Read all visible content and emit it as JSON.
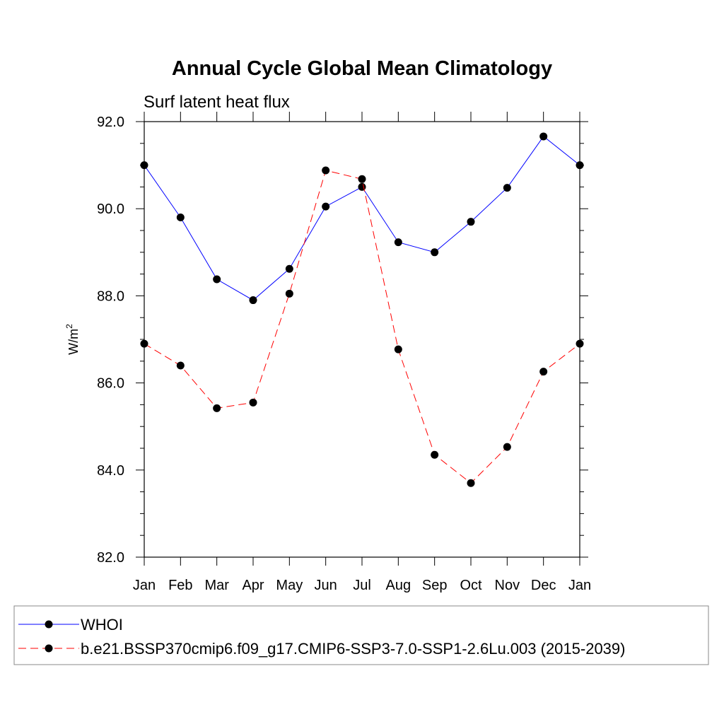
{
  "chart_data": {
    "type": "line",
    "title": "Annual Cycle Global Mean Climatology",
    "subtitle": "Surf latent heat flux",
    "xlabel": "",
    "ylabel": "W/m",
    "ylabel_superscript": "2",
    "categories": [
      "Jan",
      "Feb",
      "Mar",
      "Apr",
      "May",
      "Jun",
      "Jul",
      "Aug",
      "Sep",
      "Oct",
      "Nov",
      "Dec",
      "Jan"
    ],
    "ylim": [
      82.0,
      92.0
    ],
    "yticks": [
      "82.0",
      "84.0",
      "86.0",
      "88.0",
      "90.0",
      "92.0"
    ],
    "yticks_values": [
      82,
      84,
      86,
      88,
      90,
      92
    ],
    "grid": false,
    "legend_position": "bottom",
    "series": [
      {
        "name": "WHOI",
        "color": "#0000ff",
        "line_style": "solid",
        "marker": "filled-circle",
        "values": [
          91.0,
          89.8,
          88.38,
          87.9,
          88.62,
          90.05,
          90.5,
          89.23,
          89.0,
          89.7,
          90.48,
          91.66,
          91.0
        ]
      },
      {
        "name": "b.e21.BSSP370cmip6.f09_g17.CMIP6-SSP3-7.0-SSP1-2.6Lu.003 (2015-2039)",
        "color": "#ff0000",
        "line_style": "dashed",
        "marker": "filled-circle",
        "values": [
          86.9,
          86.4,
          85.42,
          85.55,
          88.05,
          90.88,
          90.68,
          86.77,
          84.35,
          83.7,
          84.53,
          86.26,
          86.9
        ]
      }
    ]
  }
}
